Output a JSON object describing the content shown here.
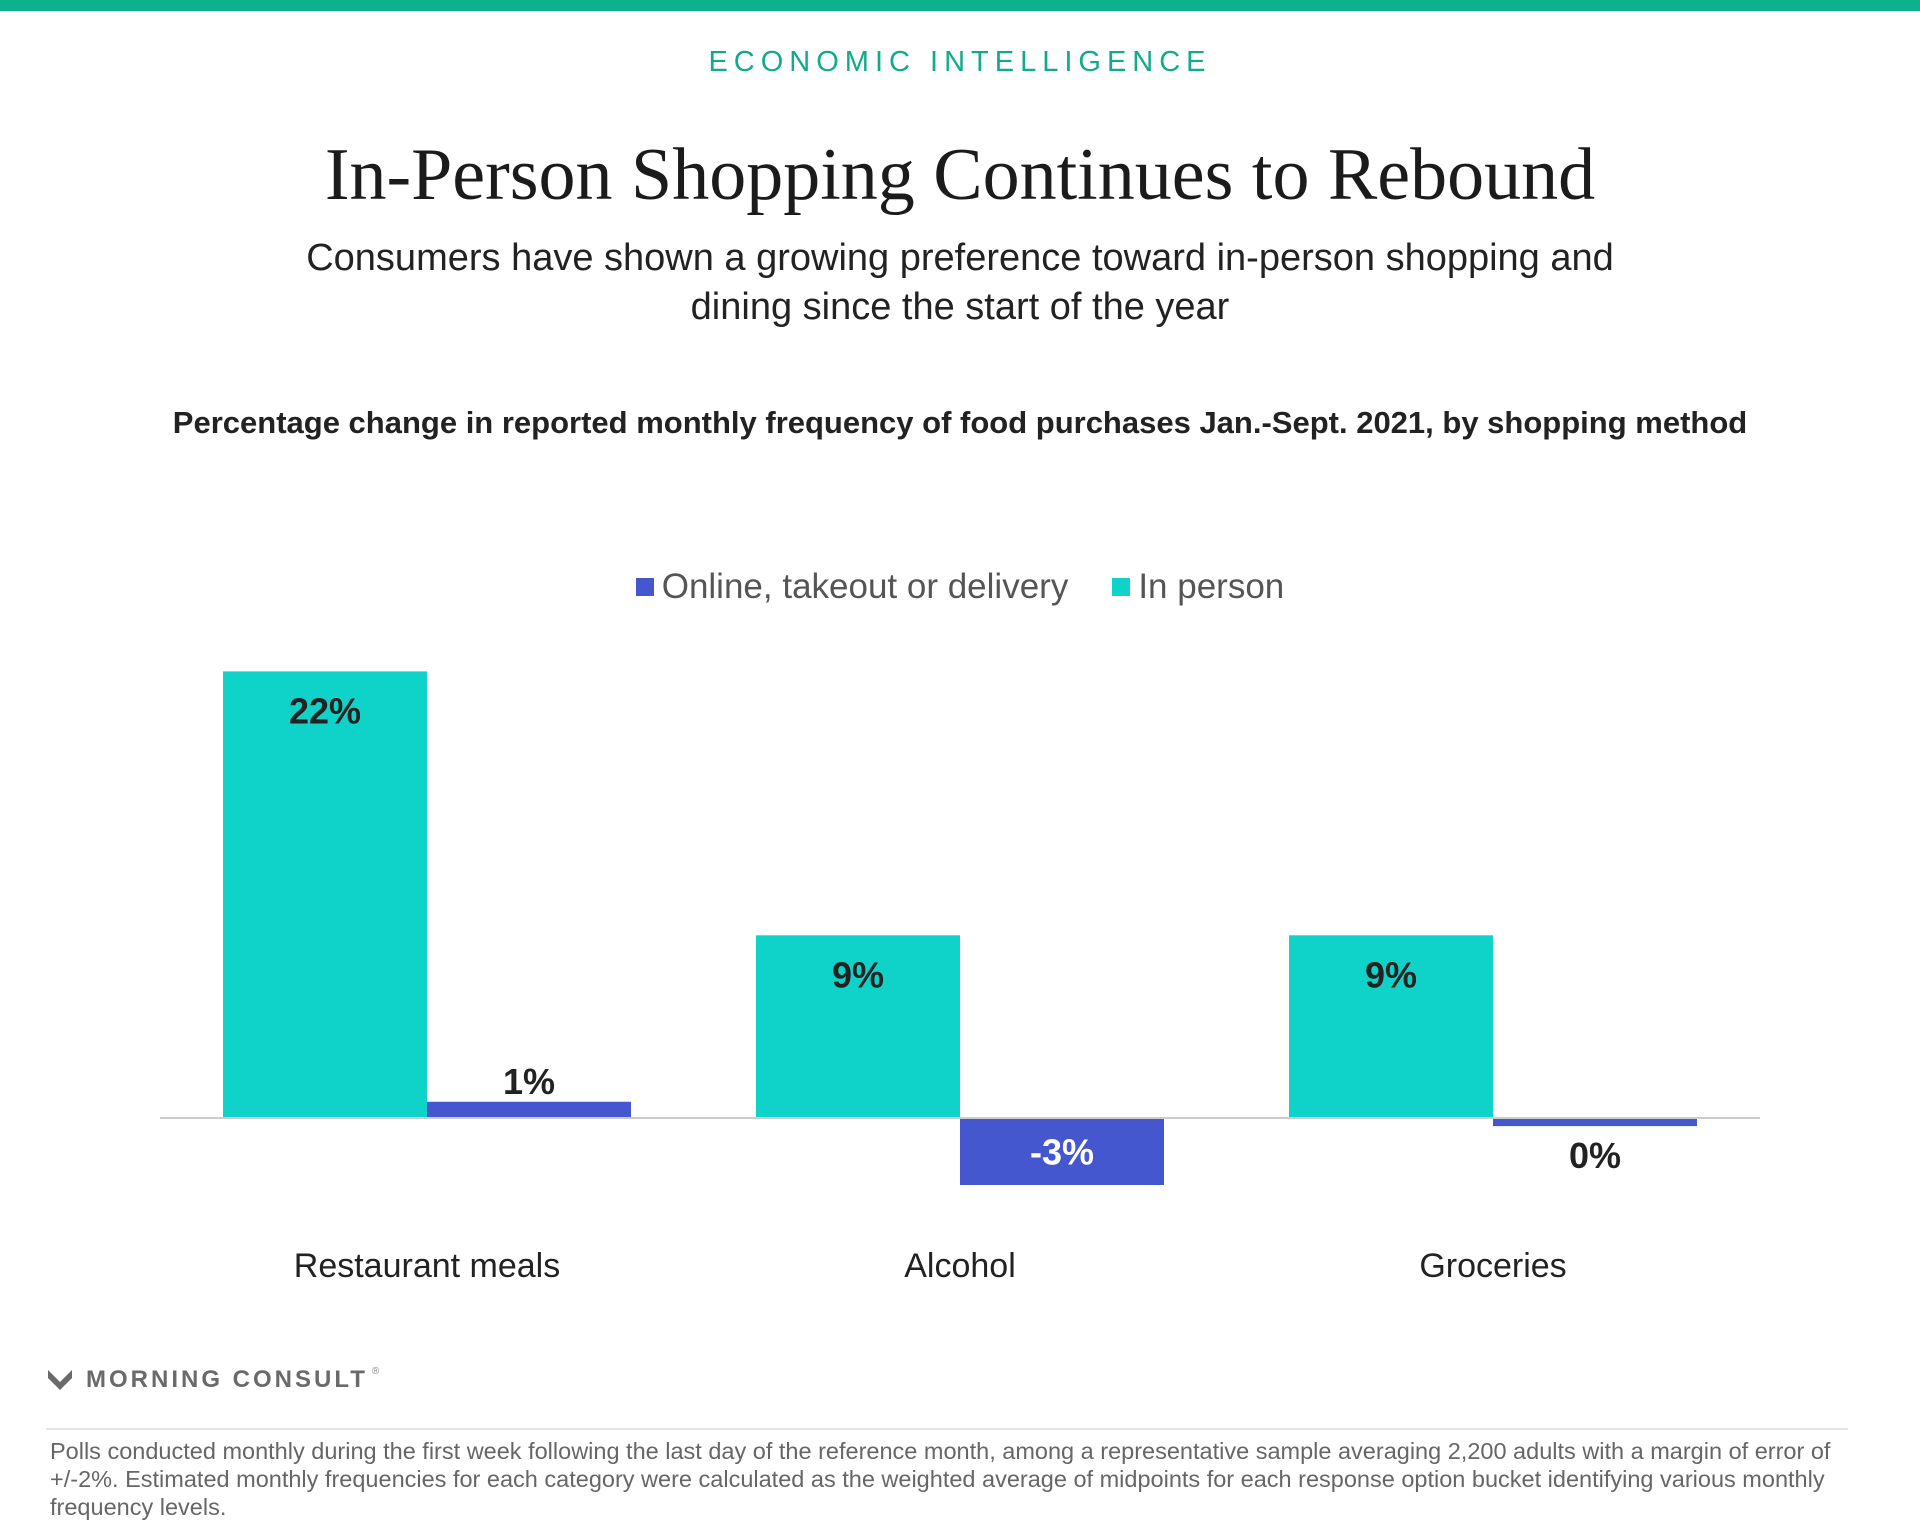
{
  "header": {
    "kicker": "ECONOMIC INTELLIGENCE",
    "title": "In-Person Shopping Continues to Rebound",
    "subtitle": "Consumers have shown a growing preference toward in-person shopping and dining since the start of the year"
  },
  "colors": {
    "accent_bar": "#0fb18c",
    "in_person": "#0fd3c9",
    "online": "#4557cf",
    "baseline": "#cccccc"
  },
  "chart_data": {
    "type": "bar",
    "title": "Percentage change in reported monthly frequency of food purchases Jan.-Sept. 2021, by shopping method",
    "categories": [
      "Restaurant meals",
      "Alcohol",
      "Groceries"
    ],
    "series": [
      {
        "name": "In person",
        "values": [
          22,
          9,
          9
        ],
        "labels": [
          "22%",
          "9%",
          "9%"
        ]
      },
      {
        "name": "Online, takeout or delivery",
        "values": [
          0.8,
          -3.3,
          -0.4
        ],
        "labels": [
          "1%",
          "-3%",
          "0%"
        ]
      }
    ],
    "legend_order": [
      "Online, takeout or delivery",
      "In person"
    ],
    "legend_position": "top-center",
    "grid": false,
    "y_axis_visible": false
  },
  "brand": {
    "name": "MORNING CONSULT",
    "mark": "®"
  },
  "footnote": "Polls conducted monthly during the first week following the last day of the reference month, among a representative sample averaging 2,200 adults with a margin of error of +/-2%. Estimated monthly frequencies for each category were calculated as the weighted average of midpoints for each response option bucket identifying various monthly frequency levels."
}
